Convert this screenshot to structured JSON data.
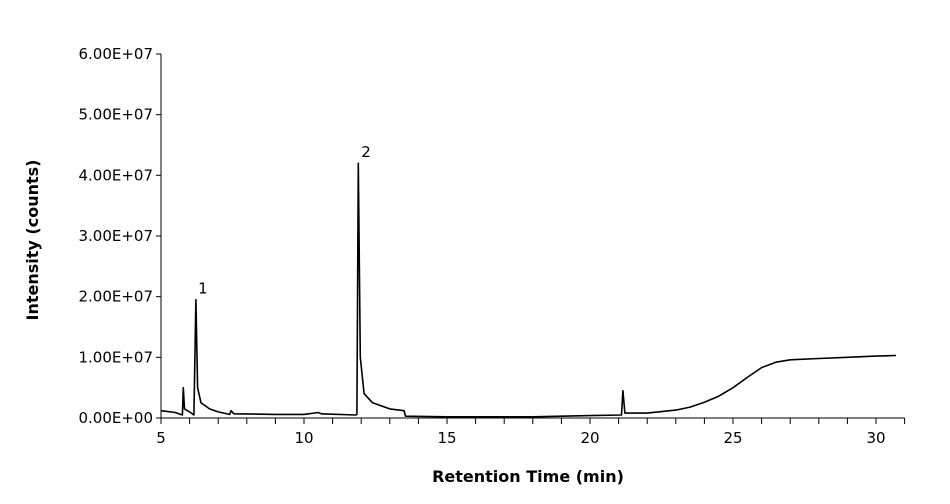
{
  "chart_data": {
    "type": "line",
    "title": "",
    "xlabel": "Retention Time (min)",
    "ylabel": "Intensity (counts)",
    "xlim": [
      5,
      31
    ],
    "ylim": [
      0,
      60000000
    ],
    "x_ticks": [
      5,
      10,
      15,
      20,
      25,
      30
    ],
    "x_tick_labels": [
      "5",
      "10",
      "15",
      "20",
      "25",
      "30"
    ],
    "x_minor_tick_step": 1,
    "y_ticks": [
      0,
      10000000,
      20000000,
      30000000,
      40000000,
      50000000,
      60000000
    ],
    "y_tick_labels": [
      "0.00E+00",
      "1.00E+07",
      "2.00E+07",
      "3.00E+07",
      "4.00E+07",
      "5.00E+07",
      "6.00E+07"
    ],
    "grid": false,
    "line_color": "#000000",
    "annotations": [
      {
        "text": "1",
        "x": 6.3,
        "y": 20500000
      },
      {
        "text": "2",
        "x": 12.0,
        "y": 43000000
      }
    ],
    "series": [
      {
        "x": [
          5.0,
          5.5,
          5.75,
          5.78,
          5.82,
          6.0,
          6.15,
          6.22,
          6.28,
          6.4,
          6.7,
          7.0,
          7.4,
          7.45,
          7.55,
          9.0,
          10.0,
          10.5,
          10.6,
          11.8,
          11.85,
          11.9,
          11.97,
          12.1,
          12.4,
          13.0,
          13.5,
          13.55,
          15.0,
          18.0,
          20.0,
          21.1,
          21.15,
          21.22,
          22.0,
          23.0,
          23.5,
          24.0,
          24.5,
          25.0,
          25.5,
          26.0,
          26.5,
          27.0,
          28.0,
          29.0,
          30.0,
          30.7
        ],
        "y": [
          1200000,
          900000,
          500000,
          5000000,
          1500000,
          1000000,
          500000,
          19500000,
          5000000,
          2500000,
          1500000,
          1000000,
          600000,
          1200000,
          700000,
          600000,
          600000,
          900000,
          700000,
          500000,
          600000,
          42000000,
          10000000,
          4000000,
          2500000,
          1500000,
          1200000,
          300000,
          200000,
          200000,
          400000,
          500000,
          4500000,
          800000,
          800000,
          1300000,
          1800000,
          2600000,
          3600000,
          5000000,
          6700000,
          8300000,
          9200000,
          9600000,
          9800000,
          10000000,
          10200000,
          10300000
        ]
      }
    ]
  }
}
